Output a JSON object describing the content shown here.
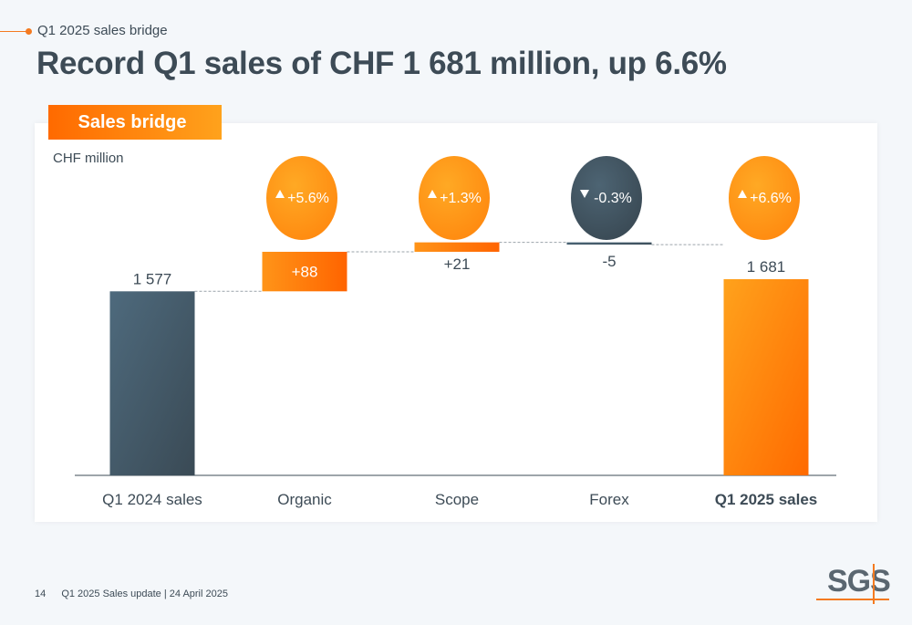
{
  "header": {
    "eyebrow": "Q1 2025 sales bridge",
    "title": "Record Q1 sales of CHF 1 681 million, up 6.6%"
  },
  "panel": {
    "tag": "Sales bridge",
    "unit": "CHF million"
  },
  "footer": {
    "page": "14",
    "text": "Q1 2025 Sales update | 24 April 2025"
  },
  "logo": "SGS",
  "colors": {
    "orange_dark": "#ff6a00",
    "orange_light": "#ffa21c",
    "slate_light": "#4e6a7d",
    "slate_dark": "#3a4a55"
  },
  "chart_data": {
    "type": "bar",
    "subtype": "waterfall",
    "categories": [
      "Q1 2024 sales",
      "Organic",
      "Scope",
      "Forex",
      "Q1 2025 sales"
    ],
    "values": [
      1577,
      88,
      21,
      -5,
      1681
    ],
    "kinds": [
      "total",
      "delta",
      "delta",
      "delta",
      "total"
    ],
    "value_labels": [
      "1 577",
      "+88",
      "+21",
      "-5",
      "1 681"
    ],
    "growth": [
      null,
      "+5.6%",
      "+1.3%",
      "-0.3%",
      "+6.6%"
    ],
    "growth_direction": [
      null,
      "up",
      "up",
      "down",
      "up"
    ],
    "bold_categories": [
      "Q1 2025 sales"
    ],
    "ylabel": "CHF million"
  }
}
